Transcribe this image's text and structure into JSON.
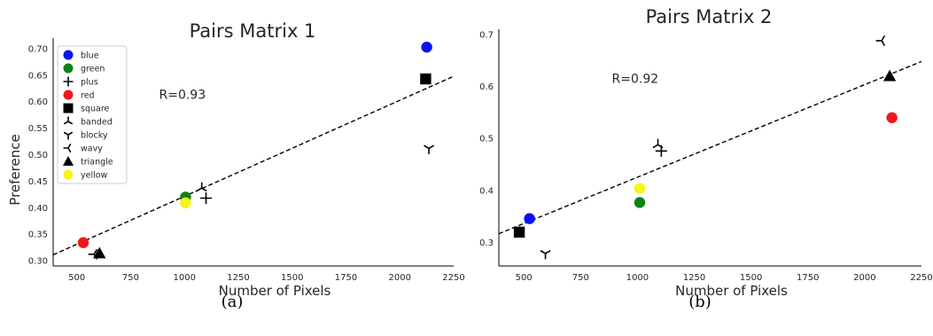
{
  "chart_data": [
    {
      "type": "scatter",
      "title": "Pairs Matrix 1",
      "xlabel": "Number of Pixels",
      "ylabel": "Preference",
      "xlim": [
        390,
        2250
      ],
      "ylim": [
        0.29,
        0.72
      ],
      "xticks": [
        500,
        750,
        1000,
        1250,
        1500,
        1750,
        2000,
        2250
      ],
      "yticks": [
        0.3,
        0.35,
        0.4,
        0.45,
        0.5,
        0.55,
        0.6,
        0.65,
        0.7
      ],
      "ytick_labels": [
        "0.30",
        "0.35",
        "0.40",
        "0.45",
        "0.50",
        "0.55",
        "0.60",
        "0.65",
        "0.70"
      ],
      "annotation": "R=0.93",
      "annotation_at": {
        "x": 990,
        "y": 0.605
      },
      "fit_line": {
        "x": [
          390,
          2250
        ],
        "y": [
          0.311,
          0.648
        ]
      },
      "legend_position": "top-left",
      "legend": [
        {
          "label": "blue",
          "marker": "circle",
          "color": "#0a12f0"
        },
        {
          "label": "green",
          "marker": "circle",
          "color": "#11801a"
        },
        {
          "label": "plus",
          "marker": "plus",
          "color": "#000000"
        },
        {
          "label": "red",
          "marker": "circle",
          "color": "#f0161b"
        },
        {
          "label": "square",
          "marker": "square",
          "color": "#000000"
        },
        {
          "label": "banded",
          "marker": "tri_down",
          "color": "#000000"
        },
        {
          "label": "blocky",
          "marker": "tri_up",
          "color": "#000000"
        },
        {
          "label": "wavy",
          "marker": "tri_left",
          "color": "#000000"
        },
        {
          "label": "triangle",
          "marker": "triangle",
          "color": "#000000"
        },
        {
          "label": "yellow",
          "marker": "circle",
          "color": "#f5f516"
        }
      ],
      "points": [
        {
          "name": "blue",
          "x": 2125,
          "y": 0.703
        },
        {
          "name": "square",
          "x": 2120,
          "y": 0.643
        },
        {
          "name": "blocky",
          "x": 2135,
          "y": 0.512
        },
        {
          "name": "green",
          "x": 1005,
          "y": 0.42
        },
        {
          "name": "yellow",
          "x": 1005,
          "y": 0.409
        },
        {
          "name": "banded",
          "x": 1080,
          "y": 0.437
        },
        {
          "name": "plus",
          "x": 1100,
          "y": 0.418
        },
        {
          "name": "red",
          "x": 530,
          "y": 0.334
        },
        {
          "name": "wavy",
          "x": 580,
          "y": 0.312
        },
        {
          "name": "triangle",
          "x": 605,
          "y": 0.314
        }
      ]
    },
    {
      "type": "scatter",
      "title": "Pairs Matrix 2",
      "xlabel": "Number of Pixels",
      "ylabel": "",
      "xlim": [
        390,
        2250
      ],
      "ylim": [
        0.255,
        0.71
      ],
      "xticks": [
        500,
        750,
        1000,
        1250,
        1500,
        1750,
        2000,
        2250
      ],
      "yticks": [
        0.3,
        0.4,
        0.5,
        0.6,
        0.7
      ],
      "ytick_labels": [
        "0.3",
        "0.4",
        "0.5",
        "0.6",
        "0.7"
      ],
      "annotation": "R=0.92",
      "annotation_at": {
        "x": 990,
        "y": 0.607
      },
      "fit_line": {
        "x": [
          390,
          2250
        ],
        "y": [
          0.317,
          0.648
        ]
      },
      "legend_position": "none",
      "points": [
        {
          "name": "wavy",
          "x": 2075,
          "y": 0.688
        },
        {
          "name": "triangle",
          "x": 2110,
          "y": 0.62
        },
        {
          "name": "red",
          "x": 2120,
          "y": 0.54
        },
        {
          "name": "banded",
          "x": 1090,
          "y": 0.488
        },
        {
          "name": "plus",
          "x": 1105,
          "y": 0.476
        },
        {
          "name": "yellow",
          "x": 1010,
          "y": 0.404
        },
        {
          "name": "green",
          "x": 1010,
          "y": 0.377
        },
        {
          "name": "blue",
          "x": 525,
          "y": 0.346
        },
        {
          "name": "square",
          "x": 480,
          "y": 0.32
        },
        {
          "name": "blocky",
          "x": 595,
          "y": 0.279
        }
      ]
    }
  ],
  "captions": [
    "(a)",
    "(b)"
  ]
}
